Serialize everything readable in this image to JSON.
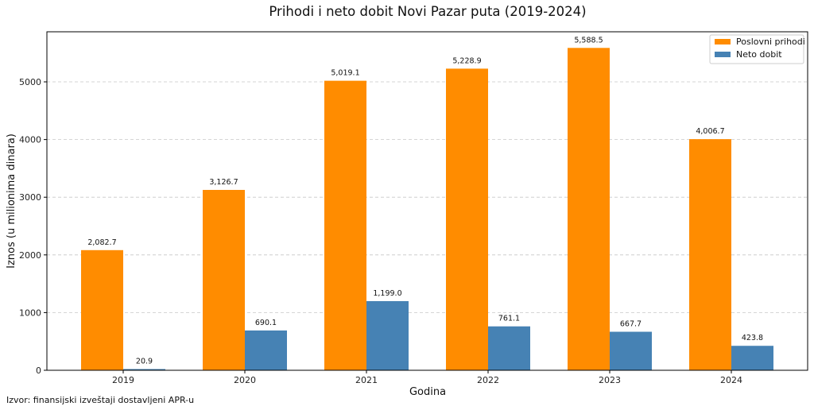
{
  "chart_data": {
    "type": "bar",
    "title": "Prihodi i neto dobit Novi Pazar puta (2019-2024)",
    "xlabel": "Godina",
    "ylabel": "Iznos (u milionima dinara)",
    "categories": [
      "2019",
      "2020",
      "2021",
      "2022",
      "2023",
      "2024"
    ],
    "series": [
      {
        "name": "Poslovni prihodi",
        "color": "#ff8c00",
        "values": [
          2082.7,
          3126.7,
          5019.1,
          5228.9,
          5588.5,
          4006.7
        ],
        "labels": [
          "2,082.7",
          "3,126.7",
          "5,019.1",
          "5,228.9",
          "5,588.5",
          "4,006.7"
        ]
      },
      {
        "name": "Neto dobit",
        "color": "#4682b4",
        "values": [
          20.9,
          690.1,
          1199.0,
          761.1,
          667.7,
          423.8
        ],
        "labels": [
          "20.9",
          "690.1",
          "1,199.0",
          "761.1",
          "667.7",
          "423.8"
        ]
      }
    ],
    "ylim": [
      0,
      5868
    ],
    "yticks": [
      0,
      1000,
      2000,
      3000,
      4000,
      5000
    ],
    "grid": "y-dashed",
    "legend": "top-right"
  },
  "source_note": "Izvor: finansijski izveštaji dostavljeni APR-u"
}
